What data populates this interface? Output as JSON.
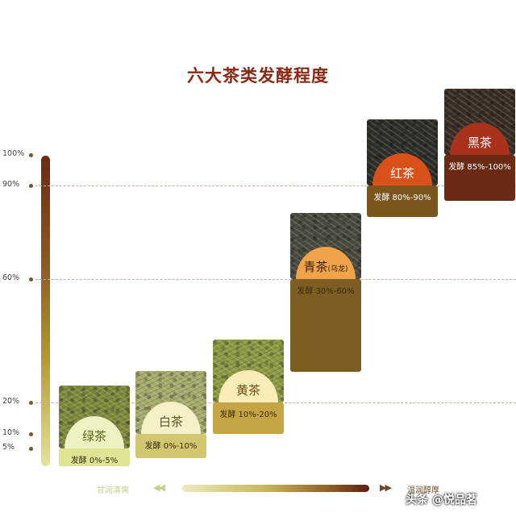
{
  "title": "六大茶类发酵程度",
  "chart_data": {
    "type": "bar",
    "title": "六大茶类发酵程度",
    "xlabel": "",
    "ylabel": "",
    "ylim": [
      0,
      100
    ],
    "y_ticks": [
      {
        "label": "100%",
        "value": 100
      },
      {
        "label": "90%",
        "value": 90
      },
      {
        "label": "60%",
        "value": 60
      },
      {
        "label": "20%",
        "value": 20
      },
      {
        "label": "10%",
        "value": 10
      },
      {
        "label": "5%",
        "value": 5
      }
    ],
    "gridlines_at": [
      90,
      60,
      20
    ],
    "categories": [
      "绿茶",
      "白茶",
      "黄茶",
      "青茶",
      "红茶",
      "黑茶"
    ],
    "series": [
      {
        "values_low": [
          0,
          0,
          10,
          30,
          80,
          85
        ],
        "values_high": [
          5,
          10,
          20,
          60,
          90,
          100
        ]
      }
    ],
    "category_notes": [
      "",
      "",
      "",
      "乌龙",
      "",
      ""
    ],
    "range_labels": [
      "发酵 0%-5%",
      "发酵 0%-10%",
      "发酵 10%-20%",
      "发酵 30%-60%",
      "发酵 80%-90%",
      "发酵 85%-100%"
    ],
    "label_colors": [
      "#3a2a10",
      "#3a2a10",
      "#3a2a10",
      "#3a2a10",
      "#ffffff",
      "#ffffff"
    ],
    "block_colors": [
      "#dfe495",
      "#d2c771",
      "#c5a543",
      "#7d5d22",
      "#7a551c",
      "#6b2a13"
    ],
    "disc_colors": [
      "#eef1c2",
      "#f5f0c6",
      "#f8edb8",
      "#f1a34a",
      "#d9501a",
      "#a8321b"
    ],
    "disc_text_colors": [
      "#5c6420",
      "#5c5820",
      "#6a4a12",
      "#3a2208",
      "#ffffff",
      "#ffffff"
    ],
    "leaf_colors": [
      "#7f8a3d",
      "#a6ab6c",
      "#8d9a43",
      "#4a4a3e",
      "#2e2e2a",
      "#3a2e24"
    ]
  },
  "scale_bar": {
    "left_text": "甘润清爽",
    "left_arrows": "◀◀",
    "right_arrows": "▶▶",
    "right_text": "温润醇厚",
    "left_color": "#c9cf88",
    "right_color": "#6a4a2a"
  },
  "watermark": "头条 @悦品茗"
}
